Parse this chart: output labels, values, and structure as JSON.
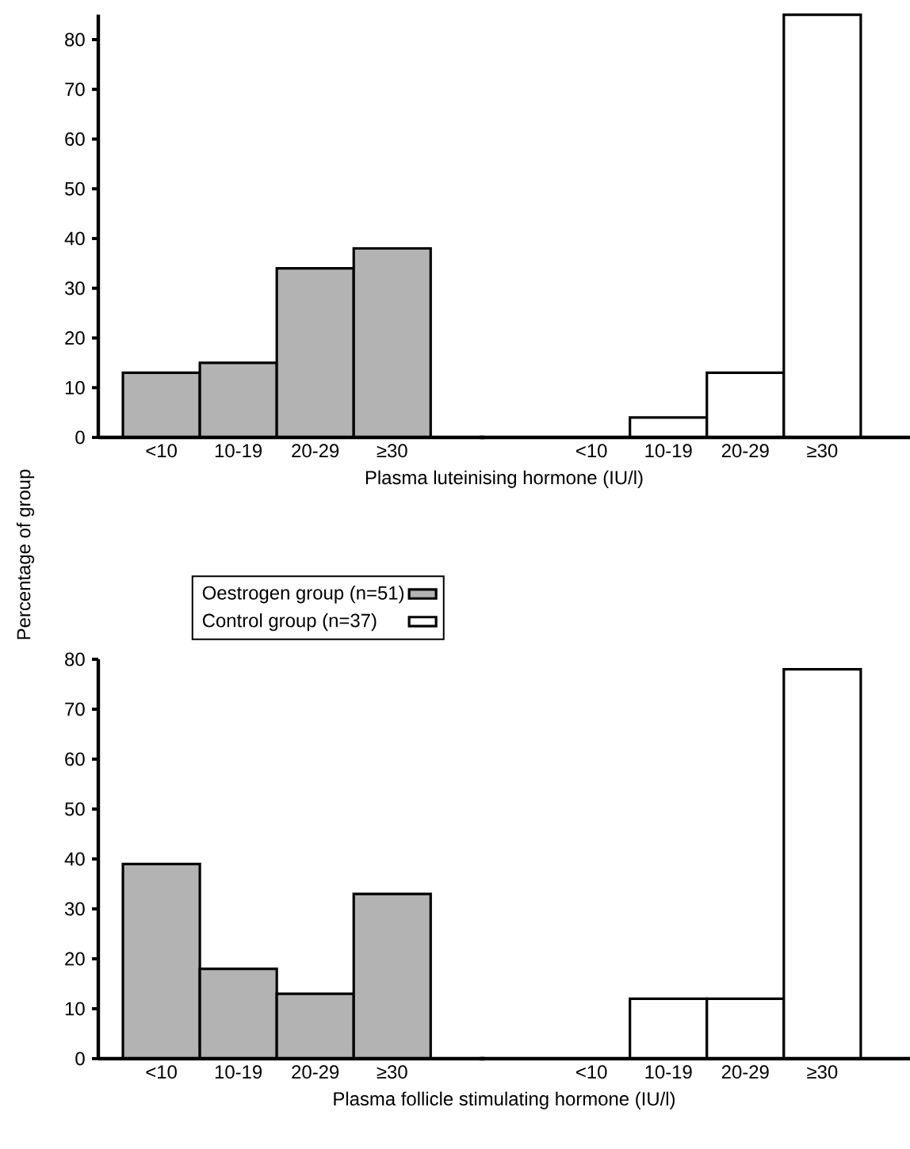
{
  "chart_data": [
    {
      "type": "bar",
      "categories": [
        "<10",
        "10-19",
        "20-29",
        "≥30",
        "<10",
        "10-19",
        "20-29",
        "≥30"
      ],
      "xlabel": "Plasma luteinising hormone (IU/l)",
      "ylabel": "Percentage of group",
      "ylim": [
        0,
        85
      ],
      "yticks": [
        0,
        10,
        20,
        30,
        40,
        50,
        60,
        70,
        80
      ],
      "series": [
        {
          "color": "#b3b3b3",
          "values": [
            13,
            15,
            34,
            38,
            null,
            null,
            null,
            null
          ]
        },
        {
          "color": "#ffffff",
          "values": [
            null,
            null,
            null,
            null,
            null,
            4,
            13,
            85
          ]
        }
      ]
    },
    {
      "type": "bar",
      "categories": [
        "<10",
        "10-19",
        "20-29",
        "≥30",
        "<10",
        "10-19",
        "20-29",
        "≥30"
      ],
      "xlabel": "Plasma follicle stimulating hormone (IU/l)",
      "ylim": [
        0,
        80
      ],
      "yticks": [
        0,
        10,
        20,
        30,
        40,
        50,
        60,
        70,
        80
      ],
      "legend": "top",
      "series": [
        {
          "name": "Oestrogen group (n=51)",
          "color": "#b3b3b3",
          "values": [
            39,
            18,
            13,
            33,
            null,
            null,
            null,
            null
          ]
        },
        {
          "name": "Control group (n=37)",
          "color": "#ffffff",
          "values": [
            null,
            null,
            null,
            null,
            null,
            12,
            12,
            78
          ]
        }
      ]
    }
  ]
}
